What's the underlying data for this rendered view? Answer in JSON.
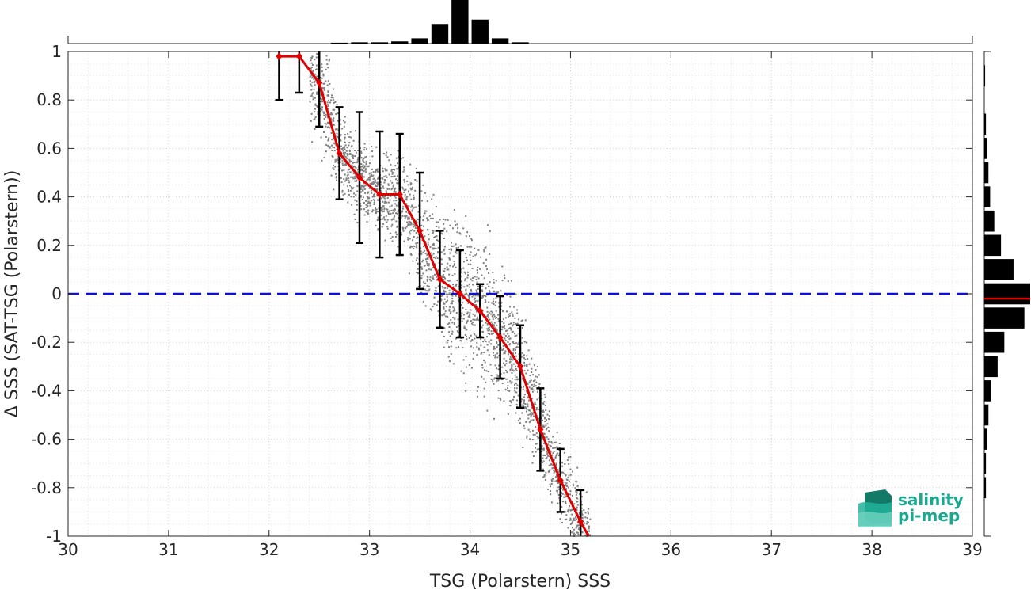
{
  "chart_data": {
    "type": "scatter",
    "title": "",
    "xlabel": "TSG (Polarstern) SSS",
    "ylabel": "Δ SSS (SAT-TSG (Polarstern))",
    "xlim": [
      30,
      39
    ],
    "ylim": [
      -1,
      1
    ],
    "xticks": [
      "30",
      "31",
      "32",
      "33",
      "34",
      "35",
      "36",
      "37",
      "38",
      "39"
    ],
    "yticks": [
      "-1",
      "-0.8",
      "-0.6",
      "-0.4",
      "-0.2",
      "0",
      "0.2",
      "0.4",
      "0.6",
      "0.8",
      "1"
    ],
    "grid": true,
    "zero_line": {
      "y": 0,
      "color": "#1010d0",
      "style": "dashed"
    },
    "scatter_color": "#808080",
    "binned_mean": {
      "color": "#e00000",
      "x": [
        32.1,
        32.3,
        32.5,
        32.7,
        32.9,
        33.1,
        33.3,
        33.5,
        33.7,
        33.9,
        34.1,
        34.3,
        34.5,
        34.7,
        34.9,
        35.1
      ],
      "y": [
        0.98,
        0.98,
        0.87,
        0.58,
        0.48,
        0.41,
        0.41,
        0.26,
        0.06,
        0.0,
        -0.07,
        -0.18,
        -0.3,
        -0.56,
        -0.77,
        -0.94
      ],
      "std": [
        0.18,
        0.15,
        0.18,
        0.19,
        0.27,
        0.26,
        0.25,
        0.24,
        0.2,
        0.18,
        0.11,
        0.17,
        0.17,
        0.17,
        0.13,
        0.13
      ]
    },
    "top_histogram": {
      "bin_centers": [
        32.7,
        32.9,
        33.1,
        33.3,
        33.5,
        33.7,
        33.9,
        34.1,
        34.3,
        34.5
      ],
      "counts": [
        0.02,
        0.03,
        0.03,
        0.05,
        0.12,
        0.45,
        1.0,
        0.55,
        0.12,
        0.03
      ]
    },
    "right_histogram": {
      "bin_centers": [
        0.9,
        0.7,
        0.6,
        0.5,
        0.4,
        0.3,
        0.2,
        0.1,
        0.0,
        -0.1,
        -0.2,
        -0.3,
        -0.4,
        -0.5,
        -0.6,
        -0.7,
        -0.8
      ],
      "counts": [
        0.01,
        0.02,
        0.03,
        0.05,
        0.07,
        0.12,
        0.2,
        0.35,
        0.55,
        0.48,
        0.24,
        0.16,
        0.08,
        0.05,
        0.03,
        0.02,
        0.02
      ],
      "mean_line_y": -0.02
    }
  },
  "logo": {
    "line1": "salinity",
    "line2": "pi-mep",
    "color": "#1aa88f"
  }
}
